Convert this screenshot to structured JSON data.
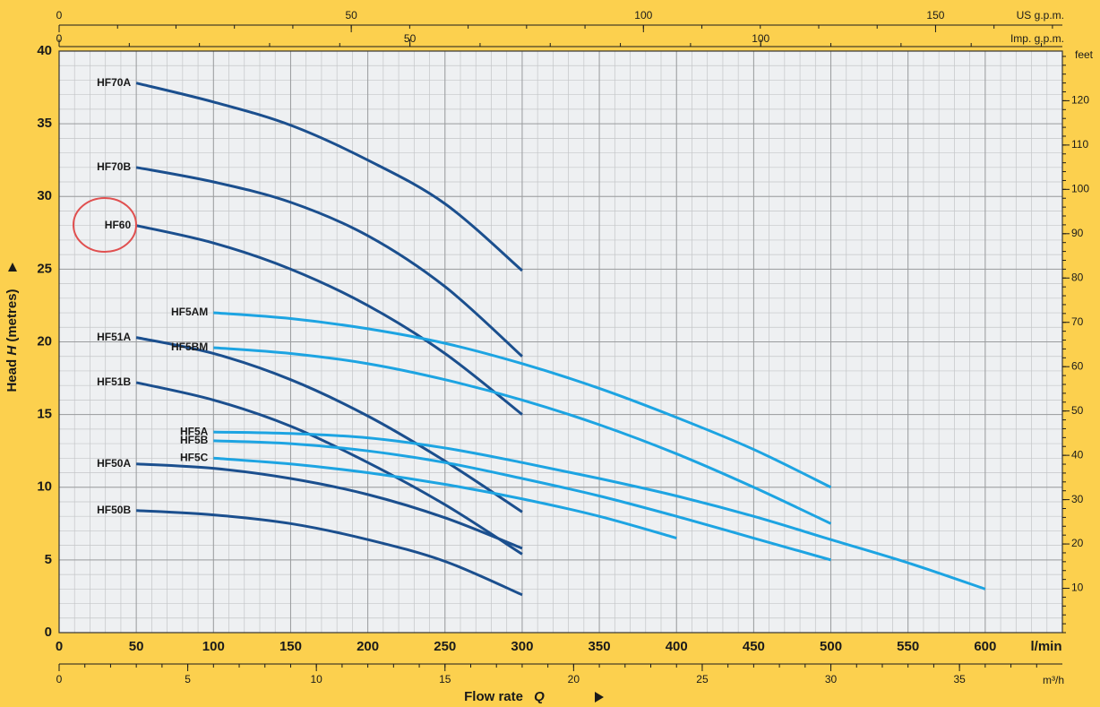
{
  "chart_data": {
    "type": "line",
    "x_title": "Flow rate",
    "x_symbol": "Q",
    "x_unit": "l/min",
    "y_label": "Head",
    "y_symbol": "H",
    "y_unit": "(metres)",
    "xlim": [
      0,
      650
    ],
    "xticks": [
      0,
      50,
      100,
      150,
      200,
      250,
      300,
      350,
      400,
      450,
      500,
      550,
      600
    ],
    "ylim": [
      0,
      40
    ],
    "yticks": [
      0,
      5,
      10,
      15,
      20,
      25,
      30,
      35,
      40
    ],
    "x2_unit": "US g.p.m.",
    "x2lim": [
      0,
      171.7
    ],
    "x2ticks": [
      0,
      50,
      100,
      150
    ],
    "x3_unit": "Imp. g.p.m.",
    "x3lim": [
      0,
      143
    ],
    "x3ticks": [
      0,
      50,
      100
    ],
    "x4_unit": "m³/h",
    "x4lim": [
      0,
      39
    ],
    "x4ticks": [
      0,
      5,
      10,
      15,
      20,
      25,
      30,
      35
    ],
    "y2_unit": "feet",
    "y2lim": [
      0,
      131.2
    ],
    "y2ticks": [
      10,
      20,
      30,
      40,
      50,
      60,
      70,
      80,
      90,
      100,
      110,
      120
    ],
    "grid": true,
    "series": [
      {
        "name": "HF70A",
        "color": "#1b4f8e",
        "x": [
          50,
          100,
          150,
          200,
          250,
          300
        ],
        "values": [
          37.8,
          36.5,
          34.9,
          32.5,
          29.5,
          24.9
        ]
      },
      {
        "name": "HF70B",
        "color": "#1b4f8e",
        "x": [
          50,
          100,
          150,
          200,
          250,
          300
        ],
        "values": [
          32.0,
          31.0,
          29.6,
          27.3,
          23.8,
          19.0
        ]
      },
      {
        "name": "HF60",
        "color": "#1b4f8e",
        "x": [
          50,
          100,
          150,
          200,
          250,
          300
        ],
        "values": [
          28.0,
          26.8,
          25.0,
          22.5,
          19.2,
          15.0
        ]
      },
      {
        "name": "HF51A",
        "color": "#1b4f8e",
        "x": [
          50,
          100,
          150,
          200,
          250,
          300
        ],
        "values": [
          20.3,
          19.2,
          17.4,
          14.9,
          11.8,
          8.3
        ]
      },
      {
        "name": "HF51B",
        "color": "#1b4f8e",
        "x": [
          50,
          100,
          150,
          200,
          250,
          300
        ],
        "values": [
          17.2,
          16.0,
          14.2,
          11.7,
          8.8,
          5.4
        ]
      },
      {
        "name": "HF50A",
        "color": "#1b4f8e",
        "x": [
          50,
          100,
          150,
          200,
          250,
          300
        ],
        "values": [
          11.6,
          11.3,
          10.6,
          9.5,
          7.9,
          5.8
        ]
      },
      {
        "name": "HF50B",
        "color": "#1b4f8e",
        "x": [
          50,
          100,
          150,
          200,
          250,
          300
        ],
        "values": [
          8.4,
          8.1,
          7.5,
          6.4,
          4.9,
          2.6
        ]
      },
      {
        "name": "HF5AM",
        "color": "#1da4e2",
        "x": [
          100,
          150,
          200,
          250,
          300,
          350,
          400,
          450,
          500
        ],
        "values": [
          22.0,
          21.6,
          20.9,
          19.9,
          18.5,
          16.8,
          14.8,
          12.6,
          10.0
        ]
      },
      {
        "name": "HF5BM",
        "color": "#1da4e2",
        "x": [
          100,
          150,
          200,
          250,
          300,
          350,
          400,
          450,
          500
        ],
        "values": [
          19.6,
          19.2,
          18.5,
          17.4,
          16.0,
          14.3,
          12.3,
          10.0,
          7.5
        ]
      },
      {
        "name": "HF5A",
        "color": "#1da4e2",
        "x": [
          100,
          150,
          200,
          250,
          300,
          350,
          400,
          450,
          500,
          550,
          600
        ],
        "values": [
          13.8,
          13.7,
          13.4,
          12.7,
          11.7,
          10.6,
          9.4,
          8.0,
          6.4,
          4.8,
          3.0
        ]
      },
      {
        "name": "HF5B",
        "color": "#1da4e2",
        "x": [
          100,
          150,
          200,
          250,
          300,
          350,
          400,
          450,
          500
        ],
        "values": [
          13.2,
          13.0,
          12.5,
          11.7,
          10.6,
          9.4,
          8.0,
          6.5,
          5.0
        ]
      },
      {
        "name": "HF5C",
        "color": "#1da4e2",
        "x": [
          100,
          150,
          200,
          250,
          300,
          350,
          400
        ],
        "values": [
          12.0,
          11.6,
          11.0,
          10.2,
          9.2,
          8.0,
          6.5
        ]
      }
    ]
  }
}
